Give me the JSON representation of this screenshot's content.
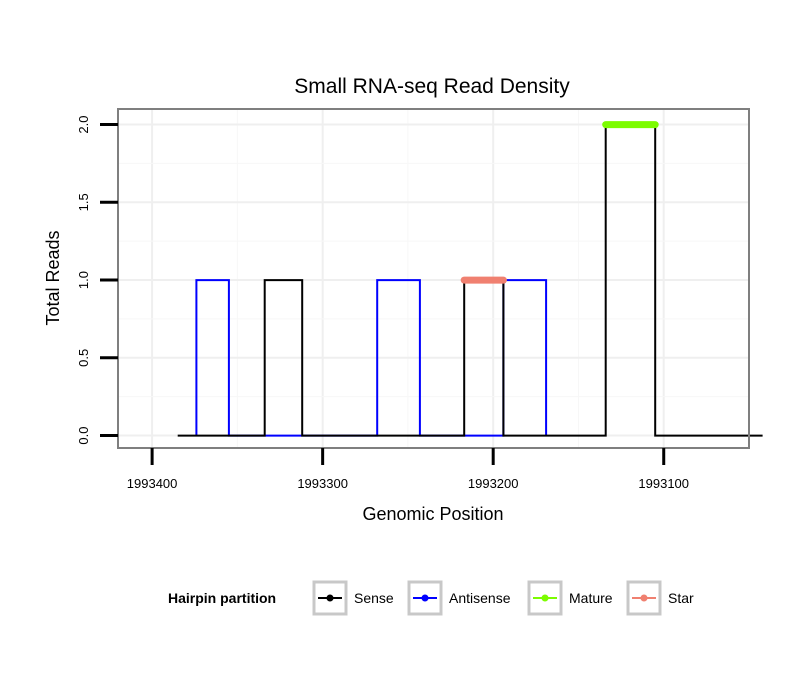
{
  "chart_data": {
    "type": "line",
    "title": "Small RNA-seq Read Density",
    "xlabel": "Genomic Position",
    "ylabel": "Total Reads",
    "x_reversed": true,
    "xlim": [
      1993420,
      1993050
    ],
    "ylim": [
      -0.08,
      2.1
    ],
    "x_ticks": [
      1993400,
      1993300,
      1993200,
      1993100
    ],
    "x_tick_labels": [
      "1993400",
      "1993300",
      "1993200",
      "1993100"
    ],
    "y_ticks": [
      0.0,
      0.5,
      1.0,
      1.5,
      2.0
    ],
    "y_tick_labels": [
      "0.0",
      "0.5",
      "1.0",
      "1.5",
      "2.0"
    ],
    "grid": true,
    "legend_position": "bottom",
    "legend_title": "Hairpin partition",
    "series": [
      {
        "name": "Sense",
        "color": "#000000",
        "style": "line",
        "x": [
          1993385,
          1993334,
          1993334,
          1993312,
          1993312,
          1993217,
          1993217,
          1993194,
          1993194,
          1993134,
          1993134,
          1993105,
          1993105,
          1993042
        ],
        "values": [
          0,
          0,
          1,
          1,
          0,
          0,
          1,
          1,
          0,
          0,
          2,
          2,
          0,
          0
        ]
      },
      {
        "name": "Antisense",
        "color": "#0000ff",
        "style": "line",
        "x": [
          1993374,
          1993374,
          1993355,
          1993355,
          1993268,
          1993268,
          1993243,
          1993243,
          1993194,
          1993194,
          1993169,
          1993169
        ],
        "values": [
          0,
          1,
          1,
          0,
          0,
          1,
          1,
          0,
          0,
          1,
          1,
          0
        ]
      },
      {
        "name": "Mature",
        "color": "#7cfc00",
        "style": "thick",
        "x": [
          1993134,
          1993105
        ],
        "values": [
          2,
          2
        ]
      },
      {
        "name": "Star",
        "color": "#f08070",
        "style": "thick",
        "x": [
          1993217,
          1993194
        ],
        "values": [
          1,
          1
        ]
      }
    ]
  }
}
